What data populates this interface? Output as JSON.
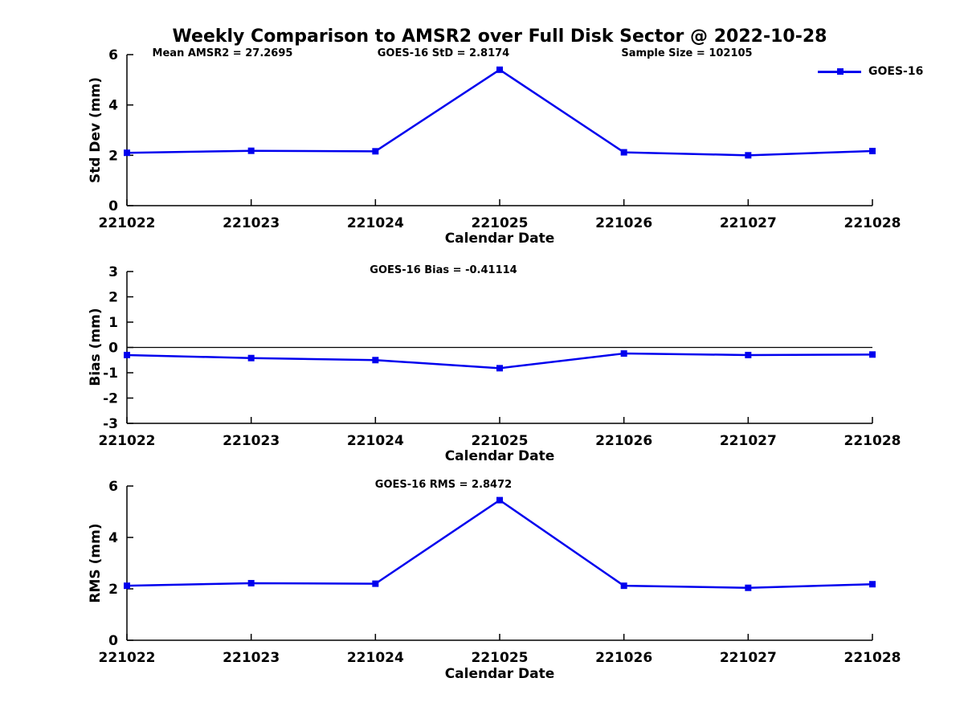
{
  "figure": {
    "title": "Weekly Comparison to AMSR2 over Full Disk Sector @ 2022-10-28",
    "colors": {
      "line": "#0000EE",
      "axis": "#000000",
      "text": "#000000",
      "zero_line": "#000000",
      "background": "#FFFFFF"
    }
  },
  "legend": {
    "label": "GOES-16",
    "position": "top-right"
  },
  "chart_data": [
    {
      "type": "line",
      "name": "std-dev",
      "series_name": "GOES-16",
      "annotations": [
        {
          "text": "Mean AMSR2 = 27.2695",
          "xfrac": 0.128
        },
        {
          "text": "GOES-16 StD = 2.8174",
          "xfrac": 0.425
        },
        {
          "text": "Sample Size = 102105",
          "xfrac": 0.751
        }
      ],
      "xlabel": "Calendar Date",
      "ylabel": "Std Dev (mm)",
      "categories": [
        "221022",
        "221023",
        "221024",
        "221025",
        "221026",
        "221027",
        "221028"
      ],
      "values": [
        2.1,
        2.18,
        2.16,
        5.4,
        2.12,
        2.0,
        2.17
      ],
      "ylim": [
        0,
        6
      ],
      "yticks": [
        0,
        2,
        4,
        6
      ],
      "zero_line": false,
      "grid": false
    },
    {
      "type": "line",
      "name": "bias",
      "series_name": "GOES-16",
      "annotations": [
        {
          "text": "GOES-16 Bias  = -0.41114",
          "xfrac": 0.425
        }
      ],
      "xlabel": "Calendar Date",
      "ylabel": "Bias (mm)",
      "categories": [
        "221022",
        "221023",
        "221024",
        "221025",
        "221026",
        "221027",
        "221028"
      ],
      "values": [
        -0.3,
        -0.42,
        -0.5,
        -0.82,
        -0.24,
        -0.3,
        -0.28
      ],
      "ylim": [
        -3,
        3
      ],
      "yticks": [
        -3,
        -2,
        -1,
        0,
        1,
        2,
        3
      ],
      "zero_line": true,
      "grid": false
    },
    {
      "type": "line",
      "name": "rms",
      "series_name": "GOES-16",
      "annotations": [
        {
          "text": "GOES-16 RMS = 2.8472",
          "xfrac": 0.425
        }
      ],
      "xlabel": "Calendar Date",
      "ylabel": "RMS (mm)",
      "categories": [
        "221022",
        "221023",
        "221024",
        "221025",
        "221026",
        "221027",
        "221028"
      ],
      "values": [
        2.12,
        2.22,
        2.2,
        5.45,
        2.12,
        2.04,
        2.18
      ],
      "ylim": [
        0,
        6
      ],
      "yticks": [
        0,
        2,
        4,
        6
      ],
      "zero_line": false,
      "grid": false
    }
  ]
}
